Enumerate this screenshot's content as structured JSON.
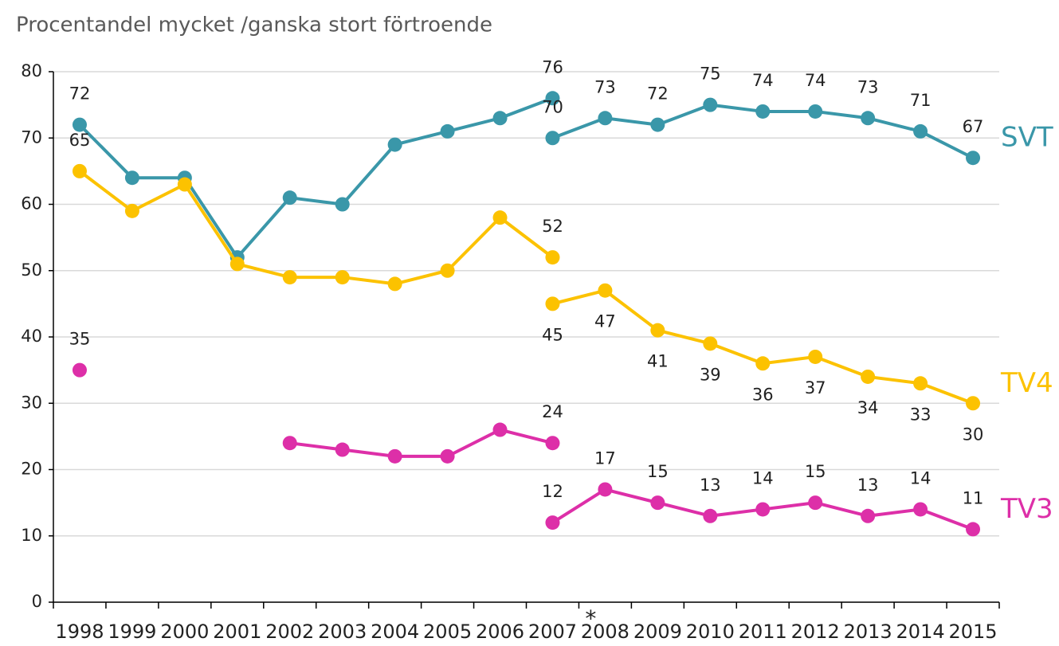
{
  "chart_data": {
    "type": "line",
    "title": "Procentandel mycket /ganska stort förtroende",
    "categories": [
      "1998",
      "1999",
      "2000",
      "2001",
      "2002",
      "2003",
      "2004",
      "2005",
      "2006",
      "2007",
      "2008",
      "2009",
      "2010",
      "2011",
      "2012",
      "2013",
      "2014",
      "2015"
    ],
    "annotation": "*",
    "annotation_category": "2008",
    "ylim": [
      0,
      80
    ],
    "yticks": [
      0,
      10,
      20,
      30,
      40,
      50,
      60,
      70,
      80
    ],
    "grid": true,
    "series": [
      {
        "color": "#3a97a9",
        "label_position": "above",
        "values": [
          72,
          64,
          64,
          52,
          61,
          60,
          69,
          71,
          73,
          76,
          null,
          null,
          null,
          null,
          null,
          null,
          null,
          null
        ],
        "value_labels": [
          "72",
          null,
          null,
          null,
          null,
          null,
          null,
          null,
          null,
          "76",
          null,
          null,
          null,
          null,
          null,
          null,
          null,
          null
        ]
      },
      {
        "name": "SVT",
        "color": "#3a97a9",
        "label_position": "above",
        "values": [
          null,
          null,
          null,
          null,
          null,
          null,
          null,
          null,
          null,
          70,
          73,
          72,
          75,
          74,
          74,
          73,
          71,
          67
        ],
        "value_labels": [
          null,
          null,
          null,
          null,
          null,
          null,
          null,
          null,
          null,
          "70",
          "73",
          "72",
          "75",
          "74",
          "74",
          "73",
          "71",
          "67"
        ]
      },
      {
        "color": "#fcc200",
        "label_position": "above",
        "values": [
          65,
          59,
          63,
          51,
          49,
          49,
          48,
          50,
          58,
          52,
          null,
          null,
          null,
          null,
          null,
          null,
          null,
          null
        ],
        "value_labels": [
          "65",
          null,
          null,
          null,
          null,
          null,
          null,
          null,
          null,
          "52",
          null,
          null,
          null,
          null,
          null,
          null,
          null,
          null
        ]
      },
      {
        "name": "TV4",
        "color": "#fcc200",
        "label_position": "below",
        "values": [
          null,
          null,
          null,
          null,
          null,
          null,
          null,
          null,
          null,
          45,
          47,
          41,
          39,
          36,
          37,
          34,
          33,
          30
        ],
        "value_labels": [
          null,
          null,
          null,
          null,
          null,
          null,
          null,
          null,
          null,
          "45",
          "47",
          "41",
          "39",
          "36",
          "37",
          "34",
          "33",
          "30"
        ]
      },
      {
        "color": "#dd2fa8",
        "label_position": "above",
        "values": [
          35,
          null,
          null,
          null,
          24,
          23,
          22,
          22,
          26,
          24,
          null,
          null,
          null,
          null,
          null,
          null,
          null,
          null
        ],
        "value_labels": [
          "35",
          null,
          null,
          null,
          null,
          null,
          null,
          null,
          null,
          "24",
          null,
          null,
          null,
          null,
          null,
          null,
          null,
          null
        ]
      },
      {
        "name": "TV3",
        "color": "#dd2fa8",
        "label_position": "above",
        "values": [
          null,
          null,
          null,
          null,
          null,
          null,
          null,
          null,
          null,
          12,
          17,
          15,
          13,
          14,
          15,
          13,
          14,
          11
        ],
        "value_labels": [
          null,
          null,
          null,
          null,
          null,
          null,
          null,
          null,
          null,
          "12",
          "17",
          "15",
          "13",
          "14",
          "15",
          "13",
          "14",
          "11"
        ]
      }
    ]
  }
}
